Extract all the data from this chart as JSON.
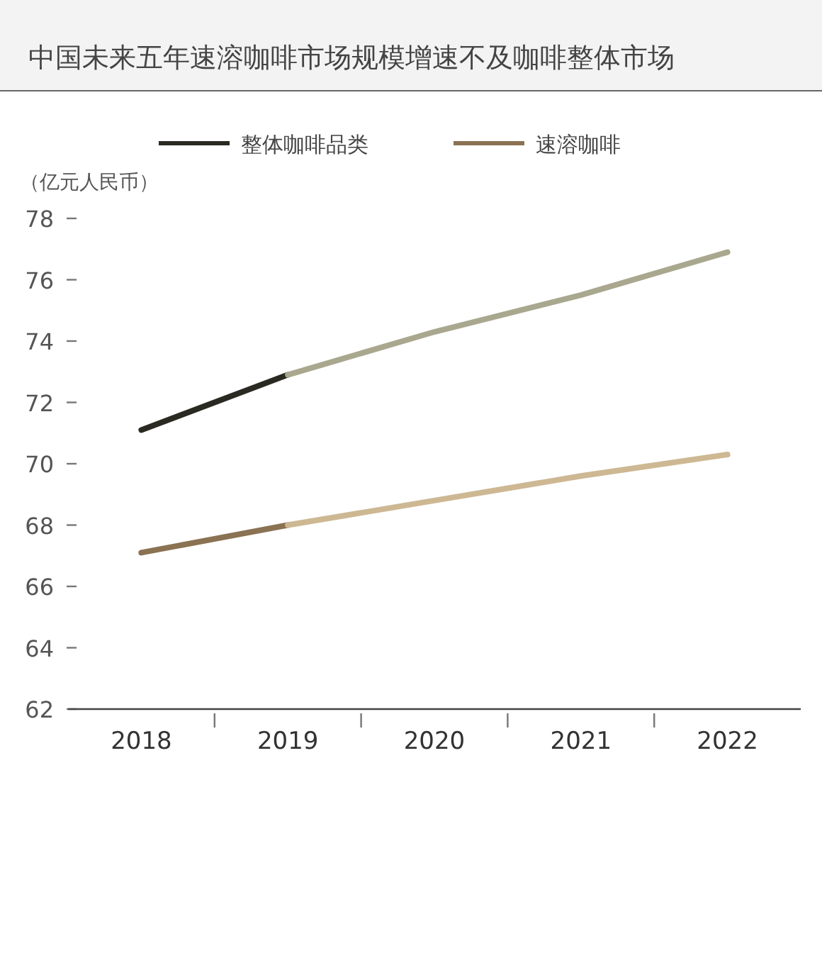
{
  "chart_data": {
    "type": "line",
    "title": "中国未来五年速溶咖啡市场规模增速不及咖啡整体市场",
    "ylabel": "（亿元人民币）",
    "categories": [
      "2018",
      "2019",
      "2020",
      "2021",
      "2022"
    ],
    "series": [
      {
        "name": "整体咖啡品类",
        "color": "#2a2a22",
        "values": [
          71.1,
          72.9,
          null,
          null,
          null
        ]
      },
      {
        "color": "#a9a88f",
        "values": [
          null,
          72.9,
          74.3,
          75.5,
          76.9
        ]
      },
      {
        "name": "速溶咖啡",
        "color": "#8a7252",
        "values": [
          67.1,
          68.0,
          null,
          null,
          null
        ]
      },
      {
        "color": "#cdb893",
        "values": [
          null,
          68.0,
          68.8,
          69.6,
          70.3
        ]
      }
    ],
    "ylim": [
      62,
      78
    ],
    "yticks": [
      62,
      64,
      66,
      68,
      70,
      72,
      74,
      76,
      78
    ],
    "grid": false,
    "legend": "top"
  }
}
